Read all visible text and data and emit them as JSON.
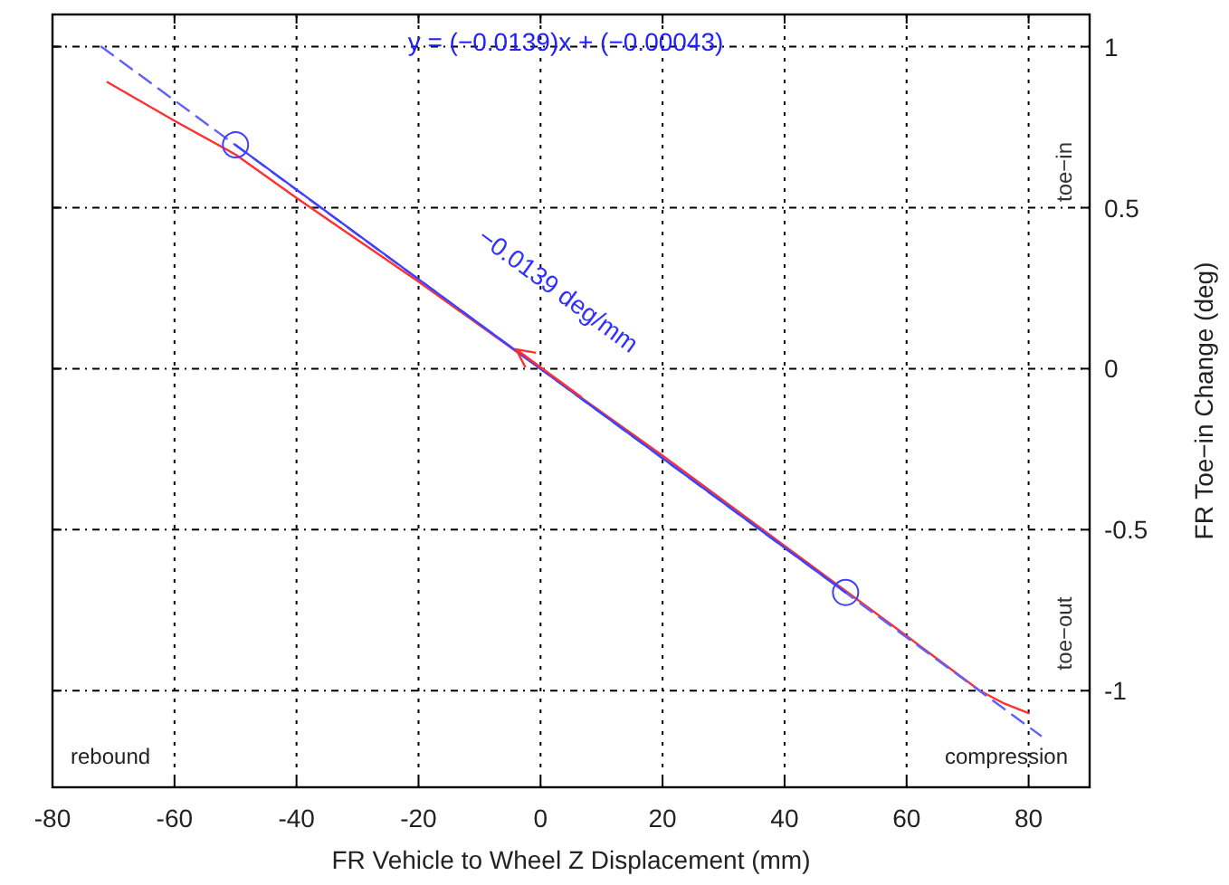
{
  "chart_data": {
    "type": "line",
    "xlabel": "FR Vehicle to Wheel Z Displacement (mm)",
    "ylabel": "FR Toe−in Change (deg)",
    "xlim": [
      -80,
      90
    ],
    "xticks": [
      -80,
      -60,
      -40,
      -20,
      0,
      20,
      40,
      60,
      80
    ],
    "ylim": [
      -1.3,
      1.1
    ],
    "yticks": [
      -1,
      -0.5,
      0,
      0.5,
      1
    ],
    "grid": true,
    "series": [
      {
        "color": "#ff3030",
        "x": [
          -71,
          -60,
          -50,
          -40,
          -20,
          0,
          20,
          40,
          60,
          72,
          76,
          80
        ],
        "values": [
          0.89,
          0.77,
          0.665,
          0.53,
          0.27,
          0.0,
          -0.27,
          -0.55,
          -0.83,
          -1.0,
          -1.04,
          -1.07
        ],
        "marker": "none",
        "line_style": "solid"
      },
      {
        "color": "#6060ff",
        "x": [
          -72,
          82
        ],
        "values": [
          1.0,
          -1.14
        ],
        "marker": "none",
        "line_style": "dashed"
      },
      {
        "color": "#4040ff",
        "x": [
          -50,
          50
        ],
        "values": [
          0.695,
          -0.695
        ],
        "marker": "circle",
        "line_style": "solid"
      }
    ],
    "annotations": [
      "y = (−0.0139)x + (−0.00043)",
      {
        "text": "−0.0139 deg/mm",
        "x": -4,
        "y": 0.06
      },
      "toe−in",
      "toe−out",
      "rebound",
      "compression"
    ]
  }
}
